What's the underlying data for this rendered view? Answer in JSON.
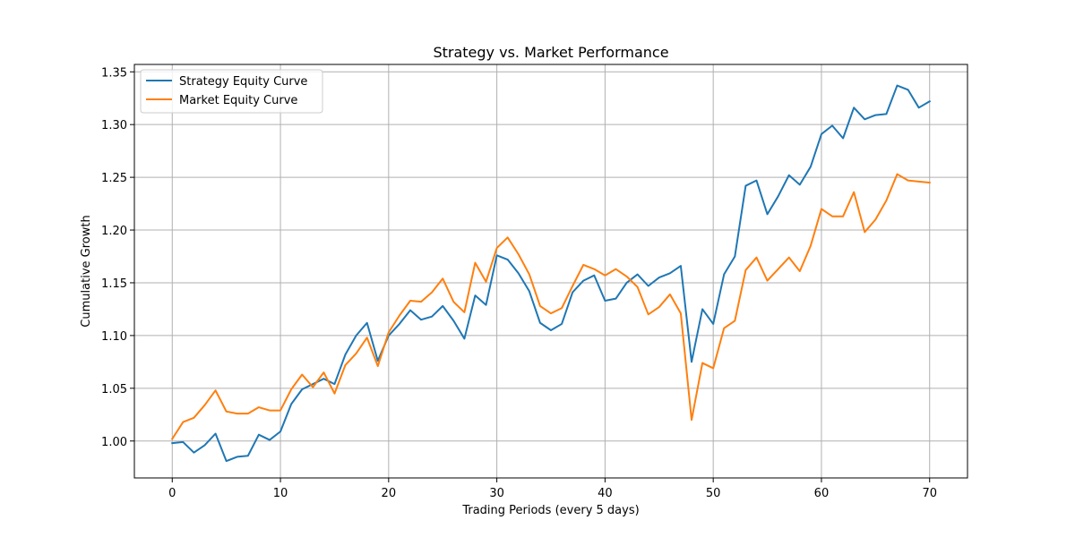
{
  "chart_data": {
    "type": "line",
    "title": "Strategy vs. Market Performance",
    "xlabel": "Trading Periods (every 5 days)",
    "ylabel": "Cumulative Growth",
    "xlim": [
      -3.5,
      73.5
    ],
    "ylim": [
      0.965,
      1.357
    ],
    "xticks": [
      0,
      10,
      20,
      30,
      40,
      50,
      60,
      70
    ],
    "yticks": [
      1.0,
      1.05,
      1.1,
      1.15,
      1.2,
      1.25,
      1.3,
      1.35
    ],
    "ytick_labels": [
      "1.00",
      "1.05",
      "1.10",
      "1.15",
      "1.20",
      "1.25",
      "1.30",
      "1.35"
    ],
    "grid": true,
    "legend_position": "top-left",
    "x": [
      0,
      1,
      2,
      3,
      4,
      5,
      6,
      7,
      8,
      9,
      10,
      11,
      12,
      13,
      14,
      15,
      16,
      17,
      18,
      19,
      20,
      21,
      22,
      23,
      24,
      25,
      26,
      27,
      28,
      29,
      30,
      31,
      32,
      33,
      34,
      35,
      36,
      37,
      38,
      39,
      40,
      41,
      42,
      43,
      44,
      45,
      46,
      47,
      48,
      49,
      50,
      51,
      52,
      53,
      54,
      55,
      56,
      57,
      58,
      59,
      60,
      61,
      62,
      63,
      64,
      65,
      66,
      67,
      68,
      69,
      70
    ],
    "series": [
      {
        "name": "Strategy Equity Curve",
        "color": "#1f77b4",
        "values": [
          0.998,
          0.999,
          0.989,
          0.996,
          1.007,
          0.981,
          0.985,
          0.986,
          1.006,
          1.001,
          1.009,
          1.035,
          1.049,
          1.054,
          1.059,
          1.054,
          1.082,
          1.1,
          1.112,
          1.076,
          1.1,
          1.111,
          1.124,
          1.115,
          1.118,
          1.128,
          1.114,
          1.097,
          1.138,
          1.129,
          1.176,
          1.172,
          1.159,
          1.142,
          1.112,
          1.105,
          1.111,
          1.141,
          1.152,
          1.157,
          1.133,
          1.135,
          1.15,
          1.158,
          1.147,
          1.155,
          1.159,
          1.166,
          1.075,
          1.125,
          1.111,
          1.158,
          1.175,
          1.242,
          1.247,
          1.215,
          1.232,
          1.252,
          1.243,
          1.26,
          1.291,
          1.299,
          1.287,
          1.316,
          1.305,
          1.309,
          1.31,
          1.337,
          1.333,
          1.316,
          1.322
        ]
      },
      {
        "name": "Market Equity Curve",
        "color": "#ff7f0e",
        "values": [
          1.002,
          1.018,
          1.022,
          1.034,
          1.048,
          1.028,
          1.026,
          1.026,
          1.032,
          1.029,
          1.029,
          1.049,
          1.063,
          1.051,
          1.065,
          1.045,
          1.072,
          1.083,
          1.098,
          1.071,
          1.103,
          1.119,
          1.133,
          1.132,
          1.141,
          1.154,
          1.132,
          1.122,
          1.169,
          1.151,
          1.183,
          1.193,
          1.177,
          1.158,
          1.128,
          1.121,
          1.126,
          1.147,
          1.167,
          1.163,
          1.157,
          1.163,
          1.156,
          1.146,
          1.12,
          1.127,
          1.139,
          1.121,
          1.02,
          1.074,
          1.069,
          1.107,
          1.114,
          1.162,
          1.174,
          1.152,
          1.163,
          1.174,
          1.161,
          1.185,
          1.22,
          1.213,
          1.213,
          1.236,
          1.198,
          1.21,
          1.228,
          1.253,
          1.247,
          1.246,
          1.245
        ]
      }
    ]
  }
}
